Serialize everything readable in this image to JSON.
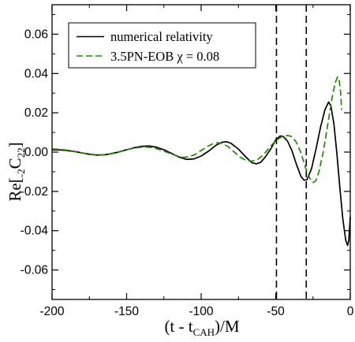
{
  "chart_data": {
    "type": "line",
    "xlabel": {
      "main": "(t - t",
      "sub": "CAH",
      "tail": ")/M"
    },
    "ylabel": {
      "pre": "Re[",
      "pre_sub": "-2",
      "mid": "C",
      "mid_sub": "22",
      "tail": "]"
    },
    "xlim": [
      -200,
      0
    ],
    "ylim": [
      -0.075,
      0.075
    ],
    "x_ticks": [
      -200,
      -150,
      -100,
      -50,
      0
    ],
    "x_tick_labels": [
      "-200",
      "-150",
      "-100",
      "-50",
      "0"
    ],
    "y_ticks": [
      -0.06,
      -0.04,
      -0.02,
      0.0,
      0.02,
      0.04,
      0.06
    ],
    "y_tick_labels": [
      "-0.06",
      "-0.04",
      "-0.02",
      "0.00",
      "0.02",
      "0.04",
      "0.06"
    ],
    "grid": false,
    "legend_position": "top-left",
    "vertical_lines": [
      -49.5,
      -29.5
    ],
    "series": [
      {
        "name": "numerical relativity",
        "color": "#000000",
        "style": "solid",
        "points": [
          [
            -200,
            0.0012
          ],
          [
            -195,
            0.0011
          ],
          [
            -190,
            0.0008
          ],
          [
            -185,
            0.0003
          ],
          [
            -180,
            -0.0004
          ],
          [
            -175,
            -0.0011
          ],
          [
            -170,
            -0.0015
          ],
          [
            -165,
            -0.0014
          ],
          [
            -160,
            -0.0008
          ],
          [
            -155,
            0.0001
          ],
          [
            -150,
            0.0012
          ],
          [
            -145,
            0.0022
          ],
          [
            -140,
            0.0029
          ],
          [
            -135,
            0.0031
          ],
          [
            -130,
            0.0025
          ],
          [
            -125,
            0.0012
          ],
          [
            -120,
            -0.0006
          ],
          [
            -115,
            -0.0025
          ],
          [
            -110,
            -0.0037
          ],
          [
            -105,
            -0.0035
          ],
          [
            -100,
            -0.002
          ],
          [
            -95,
            0.0005
          ],
          [
            -90,
            0.0035
          ],
          [
            -86,
            0.005
          ],
          [
            -83,
            0.0053
          ],
          [
            -80,
            0.0045
          ],
          [
            -75,
            0.0015
          ],
          [
            -70,
            -0.0025
          ],
          [
            -66,
            -0.0054
          ],
          [
            -63,
            -0.006
          ],
          [
            -60,
            -0.0052
          ],
          [
            -57,
            -0.0025
          ],
          [
            -53,
            0.002
          ],
          [
            -50,
            0.0062
          ],
          [
            -47,
            0.0082
          ],
          [
            -45,
            0.008
          ],
          [
            -42,
            0.0055
          ],
          [
            -39,
            0.0005
          ],
          [
            -36,
            -0.0065
          ],
          [
            -33,
            -0.0125
          ],
          [
            -31,
            -0.0143
          ],
          [
            -29,
            -0.014
          ],
          [
            -26,
            -0.0085
          ],
          [
            -23,
            0.0015
          ],
          [
            -20,
            0.0125
          ],
          [
            -17,
            0.0215
          ],
          [
            -14.5,
            0.0255
          ],
          [
            -13,
            0.0235
          ],
          [
            -11,
            0.0145
          ],
          [
            -9,
            -0.0005
          ],
          [
            -7,
            -0.018
          ],
          [
            -5,
            -0.034
          ],
          [
            -3,
            -0.045
          ],
          [
            -1.8,
            -0.0475
          ],
          [
            -1,
            -0.045
          ],
          [
            0,
            -0.033
          ]
        ]
      },
      {
        "name": "3.5PN-EOB χ = 0.08",
        "color": "#1f8c00",
        "style": "dashed",
        "points": [
          [
            -200,
            0.0016
          ],
          [
            -195,
            0.0014
          ],
          [
            -190,
            0.001
          ],
          [
            -185,
            0.0004
          ],
          [
            -180,
            -0.0004
          ],
          [
            -175,
            -0.001
          ],
          [
            -170,
            -0.0014
          ],
          [
            -165,
            -0.0013
          ],
          [
            -160,
            -0.0007
          ],
          [
            -155,
            0.0002
          ],
          [
            -150,
            0.0012
          ],
          [
            -145,
            0.002
          ],
          [
            -140,
            0.0025
          ],
          [
            -135,
            0.0025
          ],
          [
            -130,
            0.0018
          ],
          [
            -125,
            0.0005
          ],
          [
            -120,
            -0.001
          ],
          [
            -115,
            -0.0022
          ],
          [
            -112,
            -0.0027
          ],
          [
            -108,
            -0.0024
          ],
          [
            -104,
            -0.0012
          ],
          [
            -100,
            0.0008
          ],
          [
            -96,
            0.0028
          ],
          [
            -92,
            0.0043
          ],
          [
            -89,
            0.0048
          ],
          [
            -86,
            0.0044
          ],
          [
            -82,
            0.0028
          ],
          [
            -78,
            0.0002
          ],
          [
            -74,
            -0.0025
          ],
          [
            -70,
            -0.0042
          ],
          [
            -66,
            -0.0046
          ],
          [
            -62,
            -0.0037
          ],
          [
            -58,
            -0.0012
          ],
          [
            -54,
            0.0025
          ],
          [
            -50,
            0.0058
          ],
          [
            -46,
            0.0078
          ],
          [
            -42,
            0.0085
          ],
          [
            -39,
            0.0078
          ],
          [
            -36,
            0.0048
          ],
          [
            -33,
            -0.0005
          ],
          [
            -30,
            -0.008
          ],
          [
            -27,
            -0.0135
          ],
          [
            -25,
            -0.0155
          ],
          [
            -23,
            -0.0145
          ],
          [
            -21,
            -0.01
          ],
          [
            -18,
            0.0005
          ],
          [
            -15,
            0.0145
          ],
          [
            -12,
            0.0285
          ],
          [
            -10,
            0.0355
          ],
          [
            -8.5,
            0.0382
          ],
          [
            -7.5,
            0.037
          ],
          [
            -6.5,
            0.0305
          ],
          [
            -5.8,
            0.0215
          ]
        ]
      }
    ]
  }
}
